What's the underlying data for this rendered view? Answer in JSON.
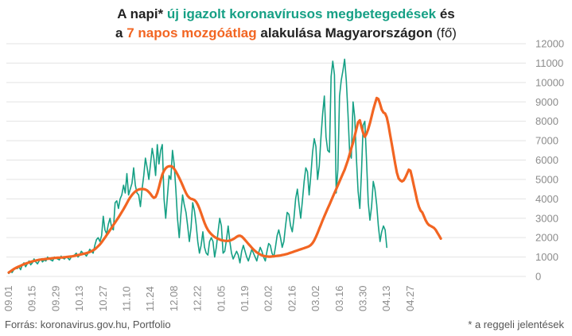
{
  "title": {
    "line1": [
      {
        "text": "A napi* ",
        "style": "bold"
      },
      {
        "text": "új igazolt koronavírusos megbetegedések",
        "style": "green"
      },
      {
        "text": " és",
        "style": "bold"
      }
    ],
    "line2": [
      {
        "text": "a ",
        "style": "bold"
      },
      {
        "text": "7 napos mozgóátlag",
        "style": "orange"
      },
      {
        "text": " alakulása Magyarországon ",
        "style": "bold"
      },
      {
        "text": "(fő)",
        "style": "normal"
      }
    ]
  },
  "footer": {
    "source": "Forrás: koronavirus.gov.hu, Portfolio",
    "note": "* a reggeli jelentések"
  },
  "chart_data": {
    "type": "line",
    "y_axis": {
      "min": 0,
      "max": 12000,
      "step": 1000,
      "position": "right"
    },
    "x_ticks": [
      "09.01",
      "09.15",
      "09.29",
      "10.13",
      "10.27",
      "11.10",
      "11.24",
      "12.08",
      "12.22",
      "01.05",
      "01.19",
      "02.02",
      "02.16",
      "03.02",
      "03.16",
      "03.30",
      "04.13",
      "04.27"
    ],
    "x_tick_spacing_days": 14,
    "grid": "horizontal",
    "colors": {
      "daily": "#16a085",
      "average": "#f26522",
      "grid": "#e3e3e3",
      "tick_text": "#8c8c8c"
    },
    "series": [
      {
        "role": "daily",
        "values": [
          150,
          250,
          200,
          350,
          450,
          400,
          500,
          350,
          600,
          700,
          500,
          650,
          800,
          600,
          700,
          900,
          750,
          650,
          800,
          900,
          750,
          850,
          800,
          1000,
          900,
          850,
          800,
          1000,
          950,
          900,
          850,
          1050,
          950,
          900,
          1000,
          950,
          850,
          1000,
          1050,
          1100,
          1200,
          1000,
          1100,
          1300,
          1200,
          1150,
          1050,
          1200,
          1400,
          1300,
          1200,
          1600,
          1900,
          2000,
          1800,
          2100,
          3100,
          2400,
          2200,
          2700,
          3000,
          2500,
          2400,
          3800,
          3900,
          3500,
          4000,
          4200,
          4700,
          4300,
          5300,
          4200,
          4500,
          4800,
          5600,
          4700,
          4300,
          4200,
          3600,
          4500,
          5200,
          6100,
          5600,
          5000,
          5800,
          6600,
          6100,
          5200,
          6800,
          5800,
          6500,
          6800,
          4000,
          3000,
          4100,
          5200,
          5000,
          6500,
          5800,
          4500,
          3000,
          2000,
          3200,
          4200,
          3700,
          3300,
          2600,
          1800,
          2500,
          3800,
          3400,
          2700,
          1800,
          1200,
          1600,
          2300,
          1500,
          1200,
          1100,
          1800,
          2000,
          1800,
          1000,
          1500,
          2300,
          3000,
          2600,
          1200,
          1300,
          1900,
          2600,
          1800,
          1200,
          900,
          1100,
          1300,
          1100,
          700,
          1300,
          1600,
          1300,
          1000,
          800,
          1100,
          1400,
          1200,
          1000,
          800,
          1200,
          1500,
          1300,
          1000,
          800,
          1300,
          1700,
          1600,
          1200,
          1000,
          1500,
          2100,
          2400,
          2000,
          1500,
          1800,
          2600,
          3300,
          3200,
          2600,
          2300,
          3000,
          4000,
          4500,
          3700,
          3000,
          3900,
          4900,
          5600,
          5400,
          4200,
          5200,
          6400,
          7100,
          6700,
          5000,
          5700,
          7200,
          8400,
          9300,
          7200,
          6500,
          6400,
          10300,
          11100,
          10400,
          4300,
          5500,
          9300,
          10100,
          10600,
          11200,
          10100,
          8400,
          6400,
          6100,
          9000,
          8200,
          6100,
          4400,
          3500,
          5400,
          7800,
          8000,
          6000,
          3800,
          2900,
          3600,
          4900,
          4500,
          3700,
          2600,
          1800,
          2300,
          2600,
          2400,
          1500
        ]
      },
      {
        "role": "average",
        "values": [
          200,
          260,
          320,
          380,
          430,
          470,
          510,
          550,
          590,
          630,
          660,
          690,
          720,
          750,
          780,
          800,
          820,
          840,
          860,
          870,
          880,
          890,
          900,
          910,
          920,
          930,
          940,
          950,
          960,
          965,
          970,
          975,
          980,
          990,
          1000,
          1010,
          1020,
          1030,
          1040,
          1060,
          1080,
          1100,
          1120,
          1140,
          1160,
          1180,
          1200,
          1230,
          1260,
          1300,
          1350,
          1400,
          1480,
          1560,
          1650,
          1760,
          1880,
          2000,
          2130,
          2260,
          2390,
          2520,
          2650,
          2780,
          2910,
          3040,
          3180,
          3320,
          3470,
          3620,
          3780,
          3940,
          4080,
          4200,
          4300,
          4380,
          4440,
          4480,
          4500,
          4510,
          4500,
          4480,
          4430,
          4350,
          4250,
          4130,
          4050,
          4100,
          4300,
          4600,
          4950,
          5250,
          5450,
          5580,
          5650,
          5680,
          5690,
          5650,
          5550,
          5420,
          5260,
          5080,
          4900,
          4700,
          4500,
          4300,
          4150,
          4060,
          4000,
          3980,
          3940,
          3850,
          3700,
          3500,
          3260,
          3000,
          2760,
          2560,
          2400,
          2280,
          2180,
          2100,
          2030,
          1980,
          1940,
          1900,
          1870,
          1850,
          1840,
          1830,
          1830,
          1850,
          1880,
          1920,
          1980,
          2040,
          2090,
          2100,
          2060,
          1980,
          1880,
          1780,
          1680,
          1580,
          1480,
          1390,
          1310,
          1240,
          1180,
          1130,
          1090,
          1060,
          1040,
          1030,
          1020,
          1020,
          1030,
          1040,
          1050,
          1060,
          1070,
          1080,
          1100,
          1120,
          1140,
          1160,
          1190,
          1220,
          1250,
          1280,
          1310,
          1340,
          1370,
          1400,
          1430,
          1460,
          1490,
          1520,
          1560,
          1620,
          1720,
          1860,
          2040,
          2240,
          2460,
          2680,
          2900,
          3100,
          3300,
          3500,
          3700,
          3900,
          4100,
          4300,
          4500,
          4700,
          4900,
          5100,
          5300,
          5500,
          5750,
          6000,
          6300,
          6600,
          6900,
          7250,
          7600,
          7950,
          8050,
          7700,
          7400,
          7200,
          7350,
          7600,
          7900,
          8250,
          8600,
          8900,
          9200,
          9150,
          8900,
          8600,
          8450,
          8400,
          8200,
          7800,
          7300,
          6800,
          6300,
          5800,
          5350,
          5050,
          4950,
          4900,
          4950,
          5100,
          5300,
          5500,
          5450,
          5100,
          4700,
          4300,
          3900,
          3600,
          3400,
          3300,
          3100,
          2900,
          2750,
          2650,
          2600,
          2550,
          2500,
          2400,
          2250,
          2100,
          1950
        ]
      }
    ]
  }
}
